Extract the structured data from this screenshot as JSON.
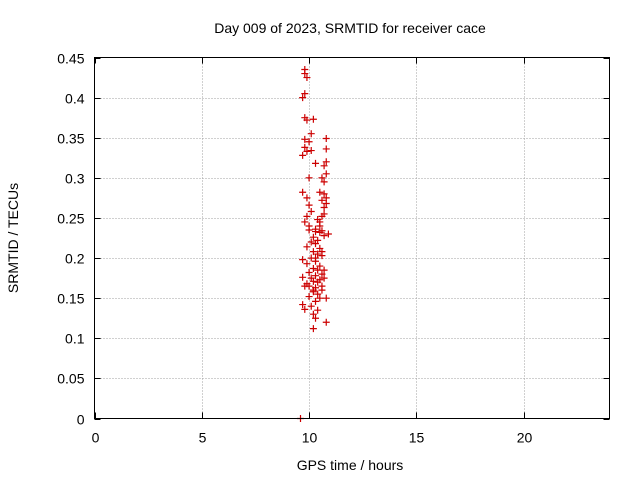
{
  "chart_data": {
    "type": "scatter",
    "title": "Day 009 of 2023, SRMTID for receiver cace",
    "xlabel": "GPS time / hours",
    "ylabel": "SRMTID / TECUs",
    "xlim": [
      0,
      24
    ],
    "ylim": [
      0,
      0.45
    ],
    "xticks": [
      0,
      5,
      10,
      15,
      20
    ],
    "xtick_labels": [
      "0",
      "5",
      "10",
      "15",
      "20"
    ],
    "yticks": [
      0,
      0.05,
      0.1,
      0.15,
      0.2,
      0.25,
      0.3,
      0.35,
      0.4,
      0.45
    ],
    "ytick_labels": [
      "0",
      "0.05",
      "0.1",
      "0.15",
      "0.2",
      "0.25",
      "0.3",
      "0.35",
      "0.4",
      "0.45"
    ],
    "grid": true,
    "marker": "plus",
    "series": [
      {
        "name": "SRMTID",
        "color": "#cc0000",
        "points": [
          [
            9.8,
            0.435
          ],
          [
            9.8,
            0.43
          ],
          [
            9.9,
            0.425
          ],
          [
            9.8,
            0.405
          ],
          [
            9.7,
            0.4
          ],
          [
            9.8,
            0.375
          ],
          [
            9.9,
            0.372
          ],
          [
            10.2,
            0.373
          ],
          [
            9.8,
            0.348
          ],
          [
            10.1,
            0.355
          ],
          [
            10.0,
            0.345
          ],
          [
            9.8,
            0.338
          ],
          [
            9.9,
            0.333
          ],
          [
            9.7,
            0.328
          ],
          [
            10.1,
            0.334
          ],
          [
            10.8,
            0.349
          ],
          [
            10.8,
            0.336
          ],
          [
            10.8,
            0.32
          ],
          [
            10.7,
            0.315
          ],
          [
            10.3,
            0.318
          ],
          [
            10.8,
            0.305
          ],
          [
            10.0,
            0.3
          ],
          [
            10.6,
            0.3
          ],
          [
            10.7,
            0.295
          ],
          [
            10.5,
            0.282
          ],
          [
            10.7,
            0.28
          ],
          [
            9.7,
            0.282
          ],
          [
            9.9,
            0.275
          ],
          [
            10.6,
            0.272
          ],
          [
            10.8,
            0.268
          ],
          [
            10.7,
            0.263
          ],
          [
            10.0,
            0.266
          ],
          [
            10.1,
            0.258
          ],
          [
            9.9,
            0.252
          ],
          [
            10.4,
            0.248
          ],
          [
            9.8,
            0.245
          ],
          [
            10.5,
            0.24
          ],
          [
            10.3,
            0.236
          ],
          [
            10.0,
            0.235
          ],
          [
            10.5,
            0.232
          ],
          [
            10.7,
            0.228
          ],
          [
            10.2,
            0.226
          ],
          [
            10.4,
            0.222
          ],
          [
            10.1,
            0.22
          ],
          [
            10.3,
            0.218
          ],
          [
            9.9,
            0.214
          ],
          [
            10.5,
            0.212
          ],
          [
            10.2,
            0.208
          ],
          [
            10.4,
            0.205
          ],
          [
            10.6,
            0.203
          ],
          [
            10.1,
            0.2
          ],
          [
            9.7,
            0.198
          ],
          [
            10.3,
            0.196
          ],
          [
            9.9,
            0.193
          ],
          [
            10.5,
            0.19
          ],
          [
            10.2,
            0.187
          ],
          [
            10.4,
            0.185
          ],
          [
            10.0,
            0.182
          ],
          [
            10.6,
            0.18
          ],
          [
            10.3,
            0.178
          ],
          [
            9.7,
            0.176
          ],
          [
            10.1,
            0.175
          ],
          [
            10.5,
            0.173
          ],
          [
            10.2,
            0.171
          ],
          [
            10.4,
            0.17
          ],
          [
            9.9,
            0.168
          ],
          [
            10.0,
            0.165
          ],
          [
            9.8,
            0.165
          ],
          [
            10.3,
            0.163
          ],
          [
            10.6,
            0.16
          ],
          [
            10.2,
            0.158
          ],
          [
            10.4,
            0.155
          ],
          [
            10.0,
            0.152
          ],
          [
            10.5,
            0.15
          ],
          [
            10.8,
            0.15
          ],
          [
            10.3,
            0.146
          ],
          [
            9.7,
            0.142
          ],
          [
            10.1,
            0.14
          ],
          [
            9.8,
            0.136
          ],
          [
            10.4,
            0.135
          ],
          [
            10.2,
            0.13
          ],
          [
            10.3,
            0.125
          ],
          [
            10.2,
            0.112
          ],
          [
            10.8,
            0.12
          ],
          [
            10.3,
            0.233
          ],
          [
            10.6,
            0.234
          ],
          [
            10.0,
            0.24
          ],
          [
            10.6,
            0.208
          ],
          [
            10.3,
            0.2
          ],
          [
            10.7,
            0.185
          ],
          [
            10.7,
            0.175
          ],
          [
            10.6,
            0.165
          ],
          [
            10.2,
            0.16
          ],
          [
            10.5,
            0.245
          ],
          [
            10.6,
            0.252
          ],
          [
            10.7,
            0.255
          ],
          [
            10.8,
            0.275
          ],
          [
            10.9,
            0.23
          ],
          [
            9.6,
            0.0
          ]
        ]
      }
    ]
  }
}
